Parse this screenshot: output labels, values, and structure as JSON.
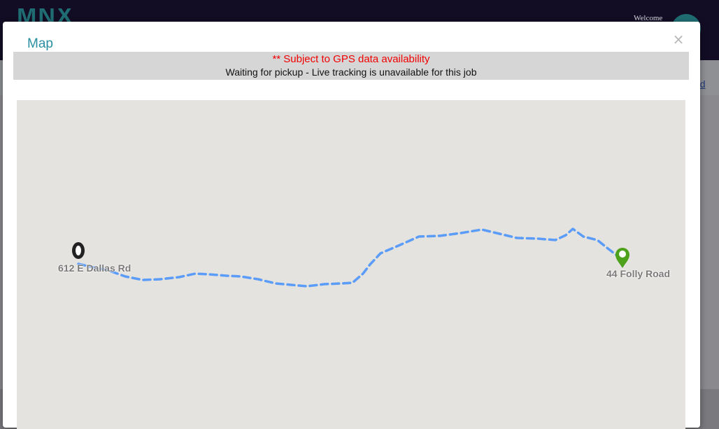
{
  "app": {
    "welcome": "Welcome"
  },
  "modal": {
    "title": "Map",
    "close_glyph": "×",
    "notice": {
      "warning": "** Subject to GPS data availability",
      "status": "Waiting for pickup - Live tracking is unavailable for this job"
    }
  },
  "map": {
    "origin_label": "612 E Dallas Rd",
    "destination_label": "44 Folly Road",
    "origin_icon": "origin-pin-icon",
    "destination_icon": "destination-pin-icon",
    "route_color": "#5a9cf8",
    "origin_color": "#222222",
    "destination_color": "#4ea11b"
  },
  "colors": {
    "title": "#2a8ea1",
    "warning": "#f20000",
    "header_bg": "#120d24"
  }
}
